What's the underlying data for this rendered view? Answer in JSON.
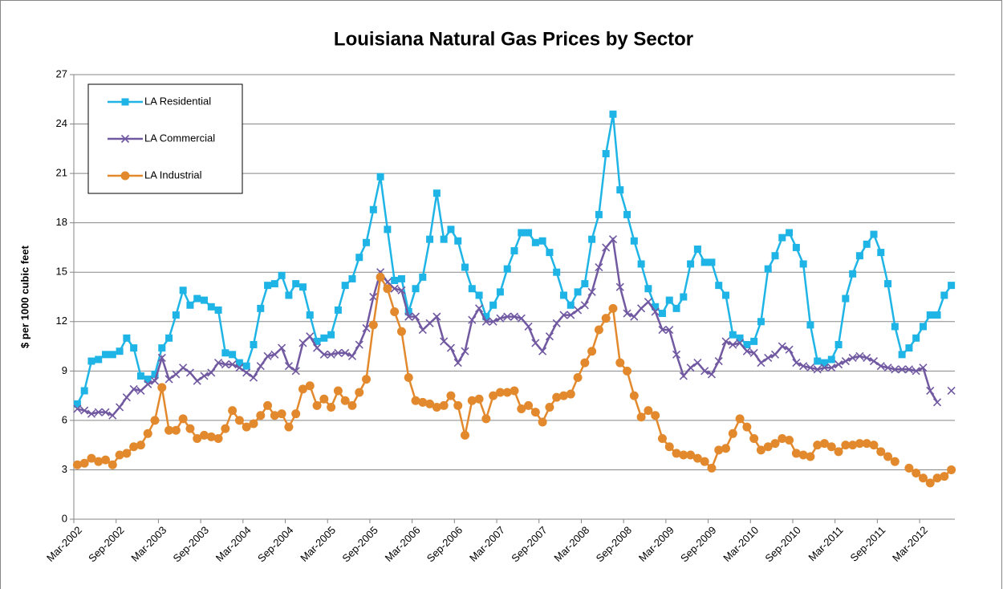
{
  "chart_data": {
    "type": "line",
    "title": "Louisiana Natural Gas Prices by Sector",
    "y_label": "$ per 1000 cubic feet",
    "categories": [
      "Mar-2002",
      null,
      null,
      null,
      null,
      null,
      "Sep-2002",
      null,
      null,
      null,
      null,
      null,
      "Mar-2003",
      null,
      null,
      null,
      null,
      null,
      "Sep-2003",
      null,
      null,
      null,
      null,
      null,
      "Mar-2004",
      null,
      null,
      null,
      null,
      null,
      "Sep-2004",
      null,
      null,
      null,
      null,
      null,
      "Mar-2005",
      null,
      null,
      null,
      null,
      null,
      "Sep-2005",
      null,
      null,
      null,
      null,
      null,
      "Mar-2006",
      null,
      null,
      null,
      null,
      null,
      "Sep-2006",
      null,
      null,
      null,
      null,
      null,
      "Mar-2007",
      null,
      null,
      null,
      null,
      null,
      "Sep-2007",
      null,
      null,
      null,
      null,
      null,
      "Mar-2008",
      null,
      null,
      null,
      null,
      null,
      "Sep-2008",
      null,
      null,
      null,
      null,
      null,
      "Mar-2009",
      null,
      null,
      null,
      null,
      null,
      "Sep-2009",
      null,
      null,
      null,
      null,
      null,
      "Mar-2010",
      null,
      null,
      null,
      null,
      null,
      "Sep-2010",
      null,
      null,
      null,
      null,
      null,
      "Mar-2011",
      null,
      null,
      null,
      null,
      null,
      "Sep-2011",
      null,
      null,
      null,
      null,
      null,
      "Mar-2012",
      null,
      null,
      null,
      null
    ],
    "series": [
      {
        "name": "LA Residential",
        "color": "#1fb4e6",
        "marker": "square",
        "values": [
          7.0,
          7.8,
          9.6,
          9.7,
          10.0,
          10.0,
          10.2,
          11.0,
          10.4,
          8.7,
          8.5,
          8.8,
          10.4,
          11.0,
          12.4,
          13.9,
          13.0,
          13.4,
          13.3,
          12.9,
          12.7,
          10.1,
          10.0,
          9.5,
          9.3,
          10.6,
          12.8,
          14.2,
          14.3,
          14.8,
          13.6,
          14.3,
          14.1,
          12.4,
          10.8,
          11.0,
          11.2,
          12.7,
          14.2,
          14.6,
          15.9,
          16.8,
          18.8,
          20.8,
          17.6,
          14.5,
          14.6,
          12.6,
          14.0,
          14.7,
          17.0,
          19.8,
          17.0,
          17.6,
          16.9,
          15.3,
          14.0,
          13.6,
          12.3,
          13.0,
          13.8,
          15.2,
          16.3,
          17.4,
          17.4,
          16.8,
          16.9,
          16.2,
          15.0,
          13.6,
          13.0,
          13.8,
          14.3,
          17.0,
          18.5,
          22.2,
          24.6,
          20.0,
          18.5,
          16.9,
          15.5,
          14.0,
          12.9,
          12.5,
          13.3,
          12.8,
          13.5,
          15.5,
          16.4,
          15.6,
          15.6,
          14.2,
          13.6,
          11.2,
          11.0,
          10.6,
          10.8,
          12.0,
          15.2,
          16.0,
          17.1,
          17.4,
          16.5,
          15.5,
          11.8,
          9.6,
          9.5,
          9.7,
          10.6,
          13.4,
          14.9,
          16.0,
          16.7,
          17.3,
          16.2,
          14.3,
          11.7,
          10.0,
          10.4,
          11.0,
          11.7,
          12.4,
          12.4,
          13.6,
          14.2
        ]
      },
      {
        "name": "LA Commercial",
        "color": "#7159a1",
        "marker": "x",
        "values": [
          6.7,
          6.6,
          6.4,
          6.5,
          6.5,
          6.3,
          6.8,
          7.4,
          7.9,
          7.8,
          8.2,
          8.4,
          9.8,
          8.5,
          8.8,
          9.2,
          8.9,
          8.4,
          8.7,
          8.9,
          9.5,
          9.4,
          9.4,
          9.2,
          8.9,
          8.6,
          9.3,
          9.9,
          10.0,
          10.4,
          9.3,
          9.0,
          10.7,
          11.1,
          10.4,
          10.0,
          10.0,
          10.1,
          10.1,
          9.9,
          10.6,
          11.6,
          13.5,
          15.0,
          14.4,
          14.0,
          13.9,
          12.3,
          12.3,
          11.5,
          11.9,
          12.3,
          10.8,
          10.4,
          9.5,
          10.2,
          12.1,
          12.8,
          12.0,
          12.0,
          12.2,
          12.3,
          12.3,
          12.2,
          11.7,
          10.7,
          10.2,
          11.1,
          11.9,
          12.4,
          12.4,
          12.7,
          13.0,
          13.8,
          15.3,
          16.5,
          17.0,
          14.1,
          12.5,
          12.3,
          12.8,
          13.2,
          12.6,
          11.5,
          11.5,
          10.0,
          8.7,
          9.2,
          9.5,
          9.0,
          8.8,
          9.6,
          10.8,
          10.6,
          10.7,
          10.2,
          10.1,
          9.5,
          9.8,
          10.0,
          10.5,
          10.3,
          9.5,
          9.3,
          9.2,
          9.1,
          9.2,
          9.2,
          9.4,
          9.6,
          9.8,
          9.9,
          9.8,
          9.6,
          9.3,
          9.2,
          9.1,
          9.1,
          9.1,
          9.0,
          9.2,
          7.8,
          7.1,
          null,
          7.8
        ]
      },
      {
        "name": "LA Industrial",
        "color": "#e3892d",
        "marker": "circle",
        "values": [
          3.3,
          3.4,
          3.7,
          3.5,
          3.6,
          3.3,
          3.9,
          4.0,
          4.4,
          4.5,
          5.2,
          6.0,
          8.0,
          5.4,
          5.4,
          6.1,
          5.5,
          4.9,
          5.1,
          5.0,
          4.9,
          5.5,
          6.6,
          6.0,
          5.6,
          5.8,
          6.3,
          6.9,
          6.3,
          6.4,
          5.6,
          6.4,
          7.9,
          8.1,
          6.9,
          7.3,
          6.8,
          7.8,
          7.2,
          6.9,
          7.7,
          8.5,
          11.8,
          14.7,
          14.0,
          12.6,
          11.4,
          8.6,
          7.2,
          7.1,
          7.0,
          6.8,
          6.9,
          7.5,
          6.9,
          5.1,
          7.2,
          7.3,
          6.1,
          7.5,
          7.7,
          7.7,
          7.8,
          6.7,
          6.9,
          6.5,
          5.9,
          6.8,
          7.4,
          7.5,
          7.6,
          8.6,
          9.5,
          10.2,
          11.5,
          12.2,
          12.8,
          9.5,
          9.0,
          7.5,
          6.2,
          6.6,
          6.3,
          4.9,
          4.4,
          4.0,
          3.9,
          3.9,
          3.7,
          3.5,
          3.1,
          4.2,
          4.3,
          5.2,
          6.1,
          5.6,
          4.9,
          4.2,
          4.4,
          4.6,
          4.9,
          4.8,
          4.0,
          3.9,
          3.8,
          4.5,
          4.6,
          4.4,
          4.1,
          4.5,
          4.5,
          4.6,
          4.6,
          4.5,
          4.1,
          3.8,
          3.5,
          null,
          3.1,
          2.8,
          2.5,
          2.2,
          2.5,
          2.6,
          3.0
        ]
      }
    ],
    "ylim": [
      0,
      27
    ],
    "yticks": [
      0,
      3,
      6,
      9,
      12,
      15,
      18,
      21,
      24,
      27
    ],
    "grid": true,
    "legend": "upper left"
  }
}
